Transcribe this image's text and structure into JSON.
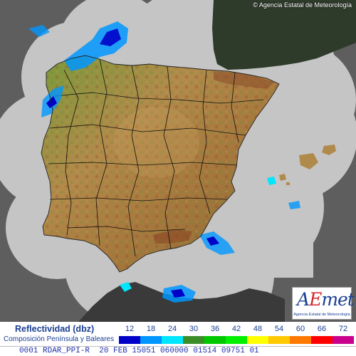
{
  "copyright": "© Agencia Estatal de Meteorología",
  "logo": {
    "text": "AEmet",
    "subtitle": "Agencia Estatal de Meteorología"
  },
  "legend": {
    "title": "Reflectividad (dbz)",
    "subtitle": "Composición Península y Baleares",
    "values": [
      {
        "label": "12",
        "color": "#0000c8"
      },
      {
        "label": "18",
        "color": "#0096ff"
      },
      {
        "label": "24",
        "color": "#00e6ff"
      },
      {
        "label": "30",
        "color": "#3c8c28"
      },
      {
        "label": "36",
        "color": "#00c800"
      },
      {
        "label": "42",
        "color": "#00f000"
      },
      {
        "label": "48",
        "color": "#ffff00"
      },
      {
        "label": "54",
        "color": "#ffc800"
      },
      {
        "label": "60",
        "color": "#ff7800"
      },
      {
        "label": "66",
        "color": "#ff0000"
      },
      {
        "label": "72",
        "color": "#c8008c"
      }
    ]
  },
  "status": {
    "text": "0001 RDAR_PPI-R  20 FEB 15051 060000 01514 09751 01"
  },
  "colors": {
    "sea": "#5e5e5e",
    "radar_coverage": "#c5c5c5",
    "france_land": "#2e3a2a",
    "africa_land": "#3a3a3a",
    "land_low": "#5d8a3e",
    "land_mid": "#b08a4a",
    "land_high": "#8a4a2a",
    "border": "#111111"
  }
}
